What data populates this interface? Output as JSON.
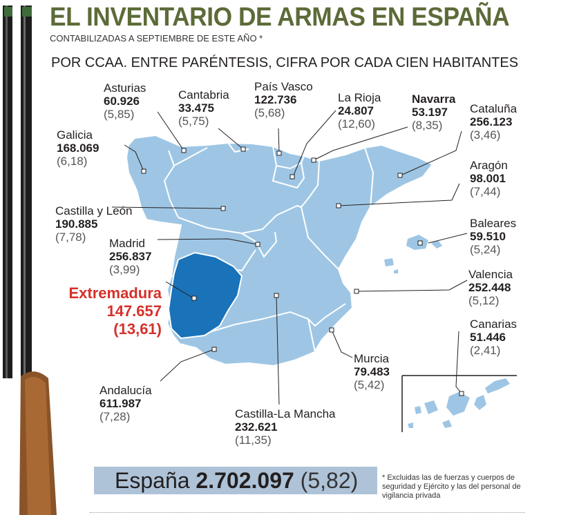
{
  "title": "EL INVENTARIO DE ARMAS EN ESPAÑA",
  "subtitle": "CONTABILIZADAS A SEPTIEMBRE DE ESTE AÑO *",
  "subheading": "POR CCAA. ENTRE PARÉNTESIS, CIFRA POR CADA CIEN HABITANTES",
  "colors": {
    "title": "#5c6b38",
    "region_fill": "#9ec6e4",
    "highlight_fill": "#1a72b9",
    "highlight_text": "#d6302a",
    "total_box": "#aec3d8"
  },
  "regions": [
    {
      "id": "asturias",
      "name": "Asturias",
      "value": "60.926",
      "per100": "(5,85)"
    },
    {
      "id": "cantabria",
      "name": "Cantabria",
      "value": "33.475",
      "per100": "(5,75)"
    },
    {
      "id": "pais-vasco",
      "name": "País Vasco",
      "value": "122.736",
      "per100": "(5,68)"
    },
    {
      "id": "la-rioja",
      "name": "La Rioja",
      "value": "24.807",
      "per100": "(12,60)"
    },
    {
      "id": "navarra",
      "name": "Navarra",
      "value": "53.197",
      "per100": "(8,35)"
    },
    {
      "id": "cataluna",
      "name": "Cataluña",
      "value": "256.123",
      "per100": "(3,46)"
    },
    {
      "id": "galicia",
      "name": "Galicia",
      "value": "168.069",
      "per100": "(6,18)"
    },
    {
      "id": "aragon",
      "name": "Aragón",
      "value": "98.001",
      "per100": "(7,44)"
    },
    {
      "id": "castilla-leon",
      "name": "Castilla y León",
      "value": "190.885",
      "per100": "(7,78)"
    },
    {
      "id": "baleares",
      "name": "Baleares",
      "value": "59.510",
      "per100": "(5,24)"
    },
    {
      "id": "madrid",
      "name": "Madrid",
      "value": "256.837",
      "per100": "(3,99)"
    },
    {
      "id": "valencia",
      "name": "Valencia",
      "value": "252.448",
      "per100": "(5,12)"
    },
    {
      "id": "extremadura",
      "name": "Extremadura",
      "value": "147.657",
      "per100": "(13,61)",
      "highlight": true
    },
    {
      "id": "canarias",
      "name": "Canarias",
      "value": "51.446",
      "per100": "(2,41)"
    },
    {
      "id": "murcia",
      "name": "Murcia",
      "value": "79.483",
      "per100": "(5,42)"
    },
    {
      "id": "andalucia",
      "name": "Andalucía",
      "value": "611.987",
      "per100": "(7,28)"
    },
    {
      "id": "castilla-la-mancha",
      "name": "Castilla-La Mancha",
      "value": "232.621",
      "per100": "(11,35)"
    }
  ],
  "total": {
    "label": "España",
    "value": "2.702.097",
    "per100": "(5,82)"
  },
  "footnote": "* Excluidas las de fuerzas y cuerpos de seguridad y Ejército y las del personal de vigilancia privada"
}
